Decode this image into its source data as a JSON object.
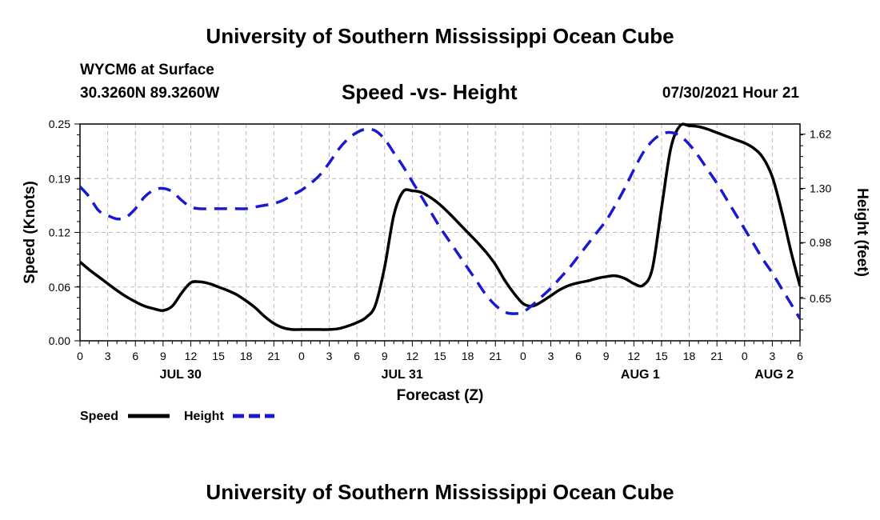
{
  "header": {
    "title": "University of Southern Mississippi Ocean Cube",
    "station": "WYCM6 at Surface",
    "coords": "30.3260N  89.3260W",
    "date": "07/30/2021 Hour 21"
  },
  "footer": {
    "title": "University of Southern Mississippi Ocean Cube"
  },
  "colors": {
    "speed": "#000000",
    "height": "#1a1acc",
    "grid": "#bbbbbb"
  },
  "chart_data": {
    "type": "line",
    "title": "Speed -vs- Height",
    "xlabel": "Forecast (Z)",
    "ylabel_left": "Speed (Knots)",
    "ylabel_right": "Height (feet)",
    "x_range": [
      0,
      78
    ],
    "y_left_range": [
      0,
      0.25
    ],
    "y_right_range": [
      0.4,
      1.68
    ],
    "x_ticks": [
      0,
      3,
      6,
      9,
      12,
      15,
      18,
      21,
      24,
      27,
      30,
      33,
      36,
      39,
      42,
      45,
      48,
      51,
      54,
      57,
      60,
      63,
      66,
      69,
      72,
      75,
      78
    ],
    "x_tick_labels": [
      "0",
      "3",
      "6",
      "9",
      "12",
      "15",
      "18",
      "21",
      "0",
      "3",
      "6",
      "9",
      "12",
      "15",
      "18",
      "21",
      "0",
      "3",
      "6",
      "9",
      "12",
      "15",
      "18",
      "21",
      "0",
      "3",
      "6"
    ],
    "date_labels": [
      {
        "x": 10.9,
        "label": "JUL 30"
      },
      {
        "x": 34.9,
        "label": "JUL 31"
      },
      {
        "x": 60.7,
        "label": "AUG 1"
      },
      {
        "x": 75.2,
        "label": "AUG 2"
      }
    ],
    "y_left_ticks": [
      0,
      0.062,
      0.125,
      0.187,
      0.25
    ],
    "y_left_tick_labels": [
      "0.00",
      "0.06",
      "0.12",
      "0.19",
      "0.25"
    ],
    "y_right_ticks": [
      0.65,
      0.98,
      1.3,
      1.62
    ],
    "y_right_tick_labels": [
      "0.65",
      "0.98",
      "1.30",
      "1.62"
    ],
    "series": [
      {
        "name": "Speed",
        "axis": "left",
        "style": "solid",
        "x": [
          0,
          1,
          2,
          3,
          4,
          5,
          6,
          7,
          8,
          9,
          10,
          11,
          12,
          13,
          14,
          15,
          16,
          17,
          18,
          19,
          20,
          21,
          22,
          23,
          24,
          25,
          26,
          27,
          28,
          29,
          30,
          31,
          32,
          33,
          34,
          35,
          36,
          37,
          38,
          39,
          40,
          41,
          42,
          43,
          44,
          45,
          46,
          47,
          48,
          49,
          50,
          51,
          52,
          53,
          54,
          55,
          56,
          57,
          58,
          59,
          60,
          61,
          62,
          63,
          64,
          65,
          66,
          67,
          68,
          69,
          70,
          71,
          72,
          73,
          74,
          75,
          76,
          77,
          78
        ],
        "values": [
          0.091,
          0.082,
          0.074,
          0.066,
          0.058,
          0.051,
          0.045,
          0.04,
          0.037,
          0.035,
          0.04,
          0.055,
          0.067,
          0.068,
          0.066,
          0.062,
          0.058,
          0.053,
          0.046,
          0.038,
          0.028,
          0.02,
          0.015,
          0.013,
          0.013,
          0.013,
          0.013,
          0.013,
          0.014,
          0.017,
          0.021,
          0.027,
          0.041,
          0.085,
          0.145,
          0.172,
          0.173,
          0.171,
          0.165,
          0.157,
          0.147,
          0.136,
          0.125,
          0.114,
          0.102,
          0.088,
          0.07,
          0.055,
          0.043,
          0.04,
          0.045,
          0.052,
          0.059,
          0.064,
          0.067,
          0.069,
          0.072,
          0.074,
          0.075,
          0.072,
          0.066,
          0.064,
          0.083,
          0.153,
          0.222,
          0.248,
          0.248,
          0.247,
          0.244,
          0.24,
          0.236,
          0.232,
          0.228,
          0.222,
          0.211,
          0.189,
          0.15,
          0.104,
          0.063
        ]
      },
      {
        "name": "Height",
        "axis": "right",
        "style": "dashed",
        "x": [
          0,
          1,
          2,
          3,
          4,
          5,
          6,
          7,
          8,
          9,
          10,
          11,
          12,
          13,
          14,
          15,
          16,
          17,
          18,
          19,
          20,
          21,
          22,
          23,
          24,
          25,
          26,
          27,
          28,
          29,
          30,
          31,
          32,
          33,
          34,
          35,
          36,
          37,
          38,
          39,
          40,
          41,
          42,
          43,
          44,
          45,
          46,
          47,
          48,
          49,
          50,
          51,
          52,
          53,
          54,
          55,
          56,
          57,
          58,
          59,
          60,
          61,
          62,
          63,
          64,
          65,
          66,
          67,
          68,
          69,
          70,
          71,
          72,
          73,
          74,
          75,
          76,
          77,
          78
        ],
        "values": [
          1.31,
          1.25,
          1.17,
          1.14,
          1.12,
          1.13,
          1.18,
          1.25,
          1.29,
          1.3,
          1.28,
          1.23,
          1.19,
          1.18,
          1.18,
          1.18,
          1.18,
          1.18,
          1.18,
          1.19,
          1.2,
          1.21,
          1.23,
          1.26,
          1.29,
          1.33,
          1.38,
          1.45,
          1.53,
          1.59,
          1.63,
          1.65,
          1.64,
          1.59,
          1.51,
          1.43,
          1.34,
          1.25,
          1.16,
          1.07,
          0.99,
          0.91,
          0.83,
          0.75,
          0.67,
          0.61,
          0.57,
          0.56,
          0.57,
          0.61,
          0.66,
          0.71,
          0.77,
          0.83,
          0.9,
          0.97,
          1.04,
          1.11,
          1.2,
          1.3,
          1.41,
          1.51,
          1.58,
          1.62,
          1.63,
          1.61,
          1.56,
          1.49,
          1.41,
          1.33,
          1.24,
          1.15,
          1.06,
          0.97,
          0.88,
          0.8,
          0.71,
          0.62,
          0.53
        ]
      }
    ],
    "legend": [
      {
        "label": "Speed",
        "style": "solid"
      },
      {
        "label": "Height",
        "style": "dashed"
      }
    ],
    "legend_position": "bottom-left",
    "grid": true
  }
}
